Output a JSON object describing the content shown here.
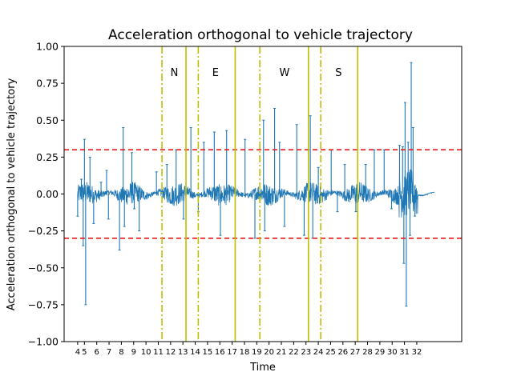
{
  "chart_data": {
    "type": "line",
    "title": "Acceleration orthogonal to vehicle trajectory",
    "xlabel": "Time",
    "ylabel": "Acceleration orthogonal to vehicle trajectory",
    "xlim": [
      2.9,
      35.2
    ],
    "ylim": [
      -1.0,
      1.0
    ],
    "grid": false,
    "yticks": [
      -1.0,
      -0.75,
      -0.5,
      -0.25,
      0.0,
      0.25,
      0.5,
      0.75,
      1.0
    ],
    "ytick_labels": [
      "−1.00",
      "−0.75",
      "−0.50",
      "−0.25",
      "0.00",
      "0.25",
      "0.50",
      "0.75",
      "1.00"
    ],
    "xticks": [
      4,
      5,
      6,
      7,
      8,
      9,
      10,
      11,
      12,
      13,
      14,
      15,
      16,
      17,
      18,
      19,
      20,
      21,
      22,
      23,
      24,
      25,
      26,
      27,
      28,
      29,
      30,
      31,
      32
    ],
    "xtick_labels": [
      "4",
      "5",
      "6",
      "7",
      "8",
      "9",
      "10",
      "11",
      "12",
      "13",
      "14",
      "15",
      "16",
      "17",
      "18",
      "19",
      "20",
      "21",
      "22",
      "23",
      "24",
      "25",
      "26",
      "27",
      "28",
      "29",
      "30",
      "31",
      "32"
    ],
    "tick_positions": [
      4.0,
      4.55,
      5.55,
      6.55,
      7.55,
      8.55,
      9.55,
      10.55,
      11.55,
      12.55,
      13.55,
      14.55,
      15.55,
      16.55,
      17.55,
      18.55,
      19.55,
      20.55,
      21.55,
      22.55,
      23.55,
      24.55,
      25.55,
      26.55,
      27.55,
      28.55,
      29.55,
      30.55,
      31.55
    ],
    "thresholds": [
      {
        "y": 0.3,
        "color": "#e41a1c",
        "style": "dashed"
      },
      {
        "y": -0.3,
        "color": "#e41a1c",
        "style": "dashed"
      }
    ],
    "vertical_markers": [
      {
        "x": 10.85,
        "style": "dashdot"
      },
      {
        "x": 12.8,
        "style": "solid"
      },
      {
        "x": 13.8,
        "style": "dashdot"
      },
      {
        "x": 16.8,
        "style": "solid"
      },
      {
        "x": 18.8,
        "style": "dashdot"
      },
      {
        "x": 22.75,
        "style": "solid"
      },
      {
        "x": 23.75,
        "style": "dashdot"
      },
      {
        "x": 26.75,
        "style": "solid"
      }
    ],
    "marker_color": "#bfbf00",
    "segment_labels": [
      {
        "text": "N",
        "x": 11.85,
        "y": 0.82
      },
      {
        "text": "E",
        "x": 15.2,
        "y": 0.82
      },
      {
        "text": "W",
        "x": 20.8,
        "y": 0.82
      },
      {
        "text": "S",
        "x": 25.2,
        "y": 0.82
      }
    ],
    "series": [
      {
        "color": "#1f77b4",
        "x_start": 4.0,
        "x_end": 33.0,
        "spikes": [
          {
            "x": 4.0,
            "y": -0.15
          },
          {
            "x": 4.3,
            "y": 0.1
          },
          {
            "x": 4.45,
            "y": -0.35
          },
          {
            "x": 4.55,
            "y": 0.37
          },
          {
            "x": 4.65,
            "y": -0.75
          },
          {
            "x": 5.0,
            "y": 0.25
          },
          {
            "x": 5.3,
            "y": -0.2
          },
          {
            "x": 5.9,
            "y": 0.08
          },
          {
            "x": 6.35,
            "y": 0.16
          },
          {
            "x": 6.5,
            "y": -0.17
          },
          {
            "x": 7.4,
            "y": -0.38
          },
          {
            "x": 7.7,
            "y": 0.45
          },
          {
            "x": 7.8,
            "y": -0.22
          },
          {
            "x": 8.4,
            "y": 0.28
          },
          {
            "x": 8.6,
            "y": -0.1
          },
          {
            "x": 9.0,
            "y": -0.25
          },
          {
            "x": 10.4,
            "y": 0.15
          },
          {
            "x": 11.25,
            "y": 0.2
          },
          {
            "x": 12.0,
            "y": 0.3
          },
          {
            "x": 12.6,
            "y": -0.17
          },
          {
            "x": 13.2,
            "y": 0.45
          },
          {
            "x": 13.8,
            "y": -0.12
          },
          {
            "x": 14.25,
            "y": 0.35
          },
          {
            "x": 15.1,
            "y": 0.42
          },
          {
            "x": 15.6,
            "y": -0.28
          },
          {
            "x": 16.1,
            "y": 0.43
          },
          {
            "x": 16.8,
            "y": 0.3
          },
          {
            "x": 17.6,
            "y": 0.37
          },
          {
            "x": 18.4,
            "y": -0.3
          },
          {
            "x": 19.1,
            "y": 0.5
          },
          {
            "x": 19.2,
            "y": -0.25
          },
          {
            "x": 20.0,
            "y": 0.58
          },
          {
            "x": 20.4,
            "y": 0.35
          },
          {
            "x": 20.8,
            "y": -0.22
          },
          {
            "x": 21.8,
            "y": 0.47
          },
          {
            "x": 22.4,
            "y": -0.28
          },
          {
            "x": 22.9,
            "y": 0.53
          },
          {
            "x": 23.1,
            "y": -0.3
          },
          {
            "x": 23.55,
            "y": 0.18
          },
          {
            "x": 24.6,
            "y": 0.3
          },
          {
            "x": 25.1,
            "y": -0.12
          },
          {
            "x": 25.7,
            "y": 0.2
          },
          {
            "x": 26.6,
            "y": -0.12
          },
          {
            "x": 27.4,
            "y": 0.2
          },
          {
            "x": 28.1,
            "y": 0.3
          },
          {
            "x": 28.9,
            "y": 0.3
          },
          {
            "x": 29.5,
            "y": -0.1
          },
          {
            "x": 30.15,
            "y": 0.33
          },
          {
            "x": 30.4,
            "y": 0.32
          },
          {
            "x": 30.5,
            "y": -0.47
          },
          {
            "x": 30.6,
            "y": 0.62
          },
          {
            "x": 30.7,
            "y": -0.76
          },
          {
            "x": 30.85,
            "y": 0.35
          },
          {
            "x": 31.0,
            "y": -0.28
          },
          {
            "x": 31.1,
            "y": 0.89
          },
          {
            "x": 31.25,
            "y": 0.45
          },
          {
            "x": 31.4,
            "y": -0.15
          }
        ]
      }
    ]
  }
}
